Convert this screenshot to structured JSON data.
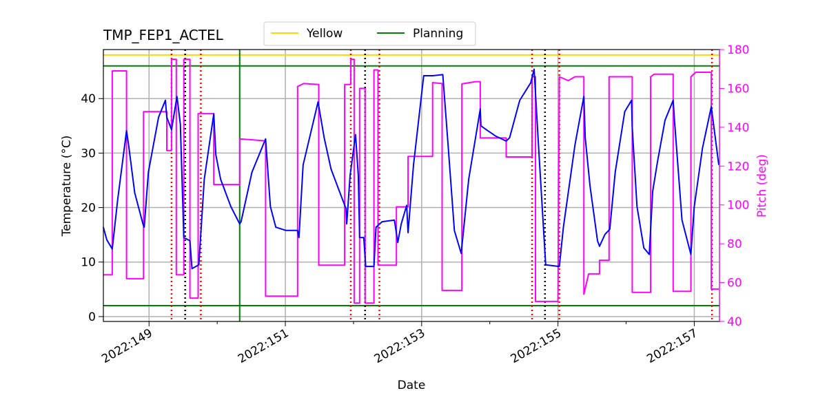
{
  "chart_data": {
    "type": "line",
    "title": "TMP_FEP1_ACTEL",
    "xlabel": "Date",
    "ylabel": "Temperature ($^\\circ$C)",
    "ylabel_display": "Temperature (°C)",
    "y2label": "Pitch (deg)",
    "xlim": [
      148.33,
      157.37
    ],
    "ylim": [
      -0.9,
      49
    ],
    "y2lim": [
      40,
      180
    ],
    "grid": true,
    "legend": {
      "placement": "top-center",
      "entries": [
        {
          "label": "Yellow",
          "color": "#ffd700"
        },
        {
          "label": "Planning",
          "color": "#008000"
        }
      ]
    },
    "xticks": [
      {
        "value": 149,
        "label": "2022:149"
      },
      {
        "value": 151,
        "label": "2022:151"
      },
      {
        "value": 153,
        "label": "2022:153"
      },
      {
        "value": 155,
        "label": "2022:155"
      },
      {
        "value": 157,
        "label": "2022:157"
      }
    ],
    "xminor": [
      150,
      152,
      154,
      156
    ],
    "yticks": [
      0,
      10,
      20,
      30,
      40
    ],
    "y2ticks": [
      40,
      60,
      80,
      100,
      120,
      140,
      160,
      180
    ],
    "hlines": [
      {
        "name": "yellow-limit",
        "y": 48,
        "color": "#ffd700"
      },
      {
        "name": "planning-limit-high",
        "y": 46,
        "color": "#008000"
      },
      {
        "name": "planning-limit-low",
        "y": 2,
        "color": "#008000"
      }
    ],
    "vline_now": {
      "x": 150.33,
      "color": "#008000"
    },
    "red_dotted_x": [
      149.33,
      149.76,
      151.96,
      152.38,
      154.62,
      155.02,
      157.26
    ],
    "black_dotted_x": [
      149.53,
      152.17,
      154.81
    ],
    "series": [
      {
        "name": "Temperature",
        "axis": "left",
        "color": "#0000ff",
        "points": [
          [
            148.33,
            16.4
          ],
          [
            148.38,
            14.1
          ],
          [
            148.46,
            12.4
          ],
          [
            148.54,
            21.5
          ],
          [
            148.67,
            34.1
          ],
          [
            148.7,
            31.5
          ],
          [
            148.79,
            22.7
          ],
          [
            148.91,
            17.0
          ],
          [
            148.93,
            16.4
          ],
          [
            148.99,
            26.5
          ],
          [
            149.14,
            36.6
          ],
          [
            149.24,
            39.7
          ],
          [
            149.26,
            36.6
          ],
          [
            149.33,
            34.3
          ],
          [
            149.41,
            40.4
          ],
          [
            149.46,
            35.3
          ],
          [
            149.51,
            14.5
          ],
          [
            149.6,
            13.9
          ],
          [
            149.63,
            8.8
          ],
          [
            149.73,
            9.5
          ],
          [
            149.81,
            25.2
          ],
          [
            149.95,
            37.2
          ],
          [
            149.98,
            29.7
          ],
          [
            150.05,
            25.2
          ],
          [
            150.2,
            20.2
          ],
          [
            150.33,
            17.0
          ],
          [
            150.35,
            17.4
          ],
          [
            150.51,
            26.5
          ],
          [
            150.71,
            32.6
          ],
          [
            150.78,
            20.2
          ],
          [
            150.86,
            16.4
          ],
          [
            151.01,
            15.8
          ],
          [
            151.18,
            15.8
          ],
          [
            151.2,
            14.5
          ],
          [
            151.26,
            27.8
          ],
          [
            151.48,
            39.4
          ],
          [
            151.57,
            32.8
          ],
          [
            151.67,
            27.1
          ],
          [
            151.82,
            22.1
          ],
          [
            151.89,
            19.8
          ],
          [
            151.9,
            17.0
          ],
          [
            151.95,
            25.9
          ],
          [
            152.03,
            33.4
          ],
          [
            152.07,
            25.9
          ],
          [
            152.09,
            14.5
          ],
          [
            152.15,
            14.5
          ],
          [
            152.18,
            9.2
          ],
          [
            152.3,
            9.2
          ],
          [
            152.33,
            16.4
          ],
          [
            152.42,
            17.4
          ],
          [
            152.6,
            17.7
          ],
          [
            152.65,
            13.6
          ],
          [
            152.7,
            17.0
          ],
          [
            152.78,
            20.4
          ],
          [
            152.8,
            15.4
          ],
          [
            152.88,
            27.8
          ],
          [
            153.03,
            44.2
          ],
          [
            153.16,
            44.2
          ],
          [
            153.31,
            44.4
          ],
          [
            153.38,
            32.8
          ],
          [
            153.48,
            15.8
          ],
          [
            153.58,
            11.6
          ],
          [
            153.69,
            25.2
          ],
          [
            153.86,
            38.1
          ],
          [
            153.87,
            35.0
          ],
          [
            153.97,
            34.1
          ],
          [
            154.09,
            33.1
          ],
          [
            154.24,
            32.2
          ],
          [
            154.29,
            32.8
          ],
          [
            154.44,
            39.7
          ],
          [
            154.6,
            42.9
          ],
          [
            154.65,
            45.4
          ],
          [
            154.72,
            30.3
          ],
          [
            154.82,
            9.5
          ],
          [
            155.02,
            9.2
          ],
          [
            155.08,
            16.4
          ],
          [
            155.25,
            31.5
          ],
          [
            155.38,
            40.4
          ],
          [
            155.4,
            32.8
          ],
          [
            155.47,
            24.0
          ],
          [
            155.58,
            13.9
          ],
          [
            155.61,
            12.9
          ],
          [
            155.69,
            15.1
          ],
          [
            155.76,
            16.0
          ],
          [
            155.84,
            26.5
          ],
          [
            155.98,
            37.6
          ],
          [
            156.08,
            39.7
          ],
          [
            156.09,
            34.7
          ],
          [
            156.16,
            20.2
          ],
          [
            156.26,
            12.6
          ],
          [
            156.34,
            11.4
          ],
          [
            156.39,
            23.0
          ],
          [
            156.46,
            28.4
          ],
          [
            156.57,
            36.0
          ],
          [
            156.69,
            39.7
          ],
          [
            156.71,
            36.0
          ],
          [
            156.82,
            17.7
          ],
          [
            156.95,
            11.4
          ],
          [
            157.0,
            20.2
          ],
          [
            157.12,
            30.9
          ],
          [
            157.25,
            38.5
          ],
          [
            157.36,
            27.8
          ]
        ]
      },
      {
        "name": "Pitch",
        "axis": "right",
        "color": "#ff00ff",
        "points": [
          [
            148.33,
            64
          ],
          [
            148.46,
            64
          ],
          [
            148.46,
            169
          ],
          [
            148.67,
            169
          ],
          [
            148.67,
            62
          ],
          [
            148.92,
            62
          ],
          [
            148.92,
            148
          ],
          [
            149.26,
            148
          ],
          [
            149.26,
            128
          ],
          [
            149.33,
            128
          ],
          [
            149.33,
            175
          ],
          [
            149.4,
            175
          ],
          [
            149.4,
            64
          ],
          [
            149.51,
            64
          ],
          [
            149.51,
            175
          ],
          [
            149.6,
            175
          ],
          [
            149.6,
            52
          ],
          [
            149.72,
            52
          ],
          [
            149.72,
            147
          ],
          [
            149.95,
            147
          ],
          [
            149.95,
            110.5
          ],
          [
            150.33,
            110.5
          ],
          [
            150.33,
            134
          ],
          [
            150.71,
            133
          ],
          [
            150.71,
            53
          ],
          [
            151.18,
            53
          ],
          [
            151.18,
            161
          ],
          [
            151.27,
            162.5
          ],
          [
            151.49,
            162
          ],
          [
            151.49,
            69
          ],
          [
            151.87,
            69
          ],
          [
            151.87,
            162
          ],
          [
            151.96,
            162
          ],
          [
            151.96,
            175
          ],
          [
            152.01,
            175
          ],
          [
            152.01,
            49.5
          ],
          [
            152.09,
            49.5
          ],
          [
            152.09,
            160
          ],
          [
            152.17,
            160
          ],
          [
            152.17,
            49.5
          ],
          [
            152.3,
            49.5
          ],
          [
            152.3,
            169.5
          ],
          [
            152.36,
            169.5
          ],
          [
            152.36,
            69
          ],
          [
            152.63,
            69
          ],
          [
            152.63,
            99
          ],
          [
            152.8,
            99
          ],
          [
            152.8,
            125
          ],
          [
            153.16,
            125
          ],
          [
            153.16,
            163
          ],
          [
            153.3,
            162.5
          ],
          [
            153.3,
            56
          ],
          [
            153.59,
            56
          ],
          [
            153.59,
            162.3
          ],
          [
            153.79,
            163.5
          ],
          [
            153.86,
            163.5
          ],
          [
            153.86,
            134.5
          ],
          [
            154.24,
            134.5
          ],
          [
            154.24,
            124.7
          ],
          [
            154.62,
            124.7
          ],
          [
            154.62,
            166
          ],
          [
            154.67,
            166
          ],
          [
            154.67,
            50.3
          ],
          [
            155.0,
            50.3
          ],
          [
            155.02,
            166
          ],
          [
            155.15,
            164
          ],
          [
            155.25,
            166
          ],
          [
            155.38,
            166
          ],
          [
            155.38,
            54
          ],
          [
            155.45,
            64.5
          ],
          [
            155.61,
            64.5
          ],
          [
            155.61,
            71.5
          ],
          [
            155.75,
            71.5
          ],
          [
            155.75,
            166
          ],
          [
            156.09,
            166
          ],
          [
            156.09,
            55
          ],
          [
            156.36,
            55
          ],
          [
            156.36,
            166
          ],
          [
            156.41,
            167.3
          ],
          [
            156.69,
            167.3
          ],
          [
            156.69,
            55.5
          ],
          [
            156.95,
            55.5
          ],
          [
            156.95,
            166
          ],
          [
            157.02,
            168.3
          ],
          [
            157.25,
            168.3
          ],
          [
            157.25,
            56.7
          ],
          [
            157.36,
            56.7
          ]
        ]
      }
    ]
  }
}
